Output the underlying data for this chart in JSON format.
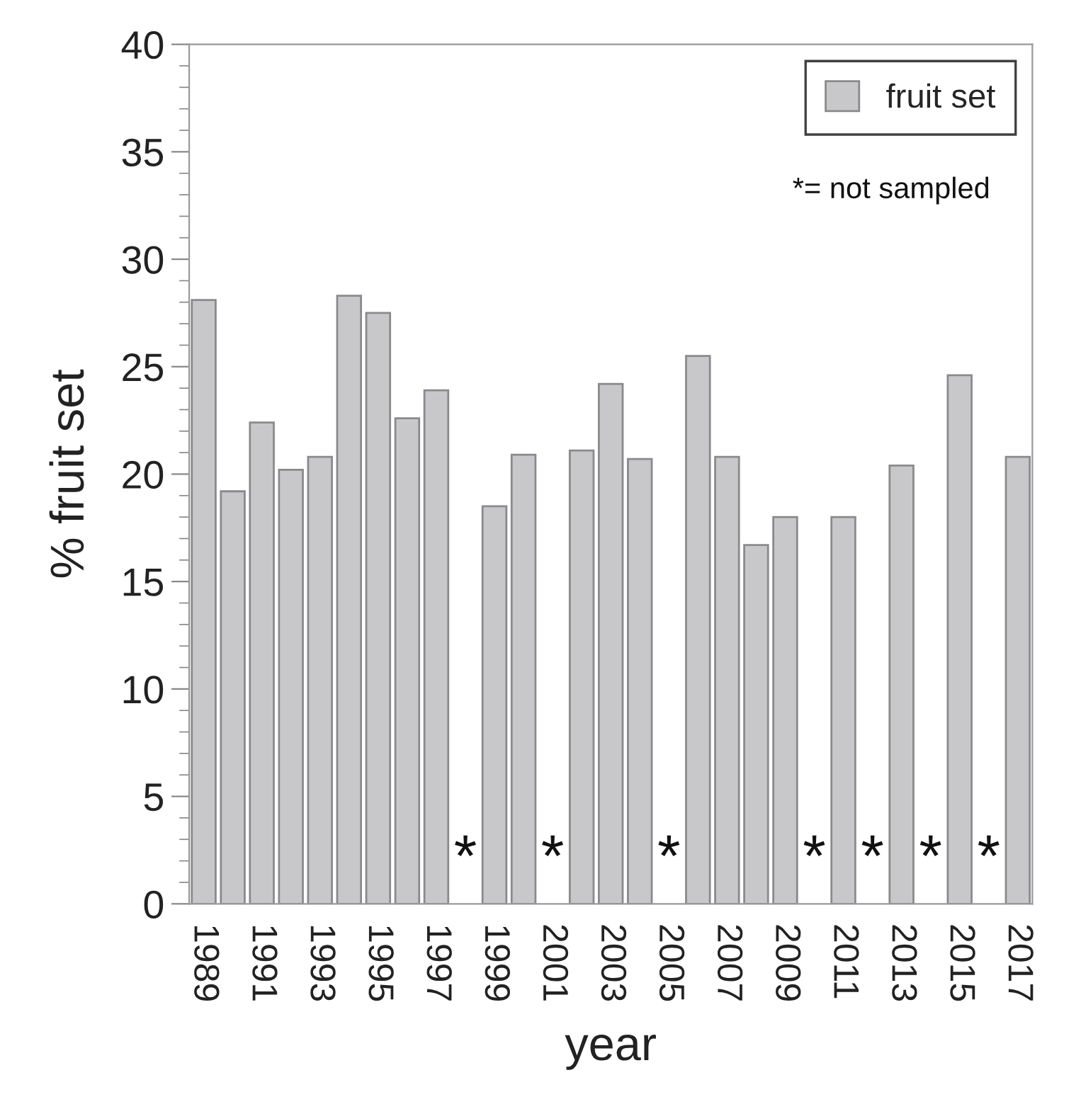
{
  "chart_data": {
    "type": "bar",
    "xlabel": "year",
    "ylabel": "% fruit set",
    "categories": [
      "1989",
      null,
      "1991",
      null,
      "1993",
      null,
      "1995",
      null,
      "1997",
      null,
      "1999",
      null,
      "2001",
      null,
      "2003",
      null,
      "2005",
      null,
      "2007",
      null,
      "2009",
      null,
      "2011",
      null,
      "2013",
      null,
      "2015",
      null,
      "2017"
    ],
    "series": [
      {
        "name": "fruit set",
        "color": "#c8c8ca",
        "values": [
          28.1,
          19.2,
          22.4,
          20.2,
          20.8,
          28.3,
          27.5,
          22.6,
          23.9,
          null,
          18.5,
          20.9,
          null,
          21.1,
          24.2,
          20.7,
          null,
          25.5,
          20.8,
          16.7,
          18.0,
          null,
          18.0,
          null,
          20.4,
          null,
          24.6,
          null,
          20.8
        ]
      }
    ],
    "ylim": [
      0,
      40
    ],
    "yticks": [
      0,
      {
        "value": 1,
        "label": null
      },
      {
        "value": 2,
        "label": null
      },
      {
        "value": 3,
        "label": null
      },
      {
        "value": 4,
        "label": null
      },
      5,
      {
        "value": 6,
        "label": null
      },
      {
        "value": 7,
        "label": null
      },
      {
        "value": 8,
        "label": null
      },
      {
        "value": 9,
        "label": null
      },
      10,
      {
        "value": 11,
        "label": null
      },
      {
        "value": 12,
        "label": null
      },
      {
        "value": 13,
        "label": null
      },
      {
        "value": 14,
        "label": null
      },
      15,
      {
        "value": 16,
        "label": null
      },
      {
        "value": 17,
        "label": null
      },
      {
        "value": 18,
        "label": null
      },
      {
        "value": 19,
        "label": null
      },
      20,
      {
        "value": 21,
        "label": null
      },
      {
        "value": 22,
        "label": null
      },
      {
        "value": 23,
        "label": null
      },
      {
        "value": 24,
        "label": null
      },
      25,
      {
        "value": 26,
        "label": null
      },
      {
        "value": 27,
        "label": null
      },
      {
        "value": 28,
        "label": null
      },
      {
        "value": 29,
        "label": null
      },
      30,
      {
        "value": 31,
        "label": null
      },
      {
        "value": 32,
        "label": null
      },
      {
        "value": 33,
        "label": null
      },
      {
        "value": 34,
        "label": null
      },
      35,
      {
        "value": 36,
        "label": null
      },
      {
        "value": 37,
        "label": null
      },
      {
        "value": 38,
        "label": null
      },
      {
        "value": 39,
        "label": null
      },
      40
    ],
    "annotations": [
      "*",
      "*",
      "*",
      "*",
      "*",
      "*",
      "*",
      "*= not sampled"
    ],
    "legend": "top right",
    "grid": false
  }
}
